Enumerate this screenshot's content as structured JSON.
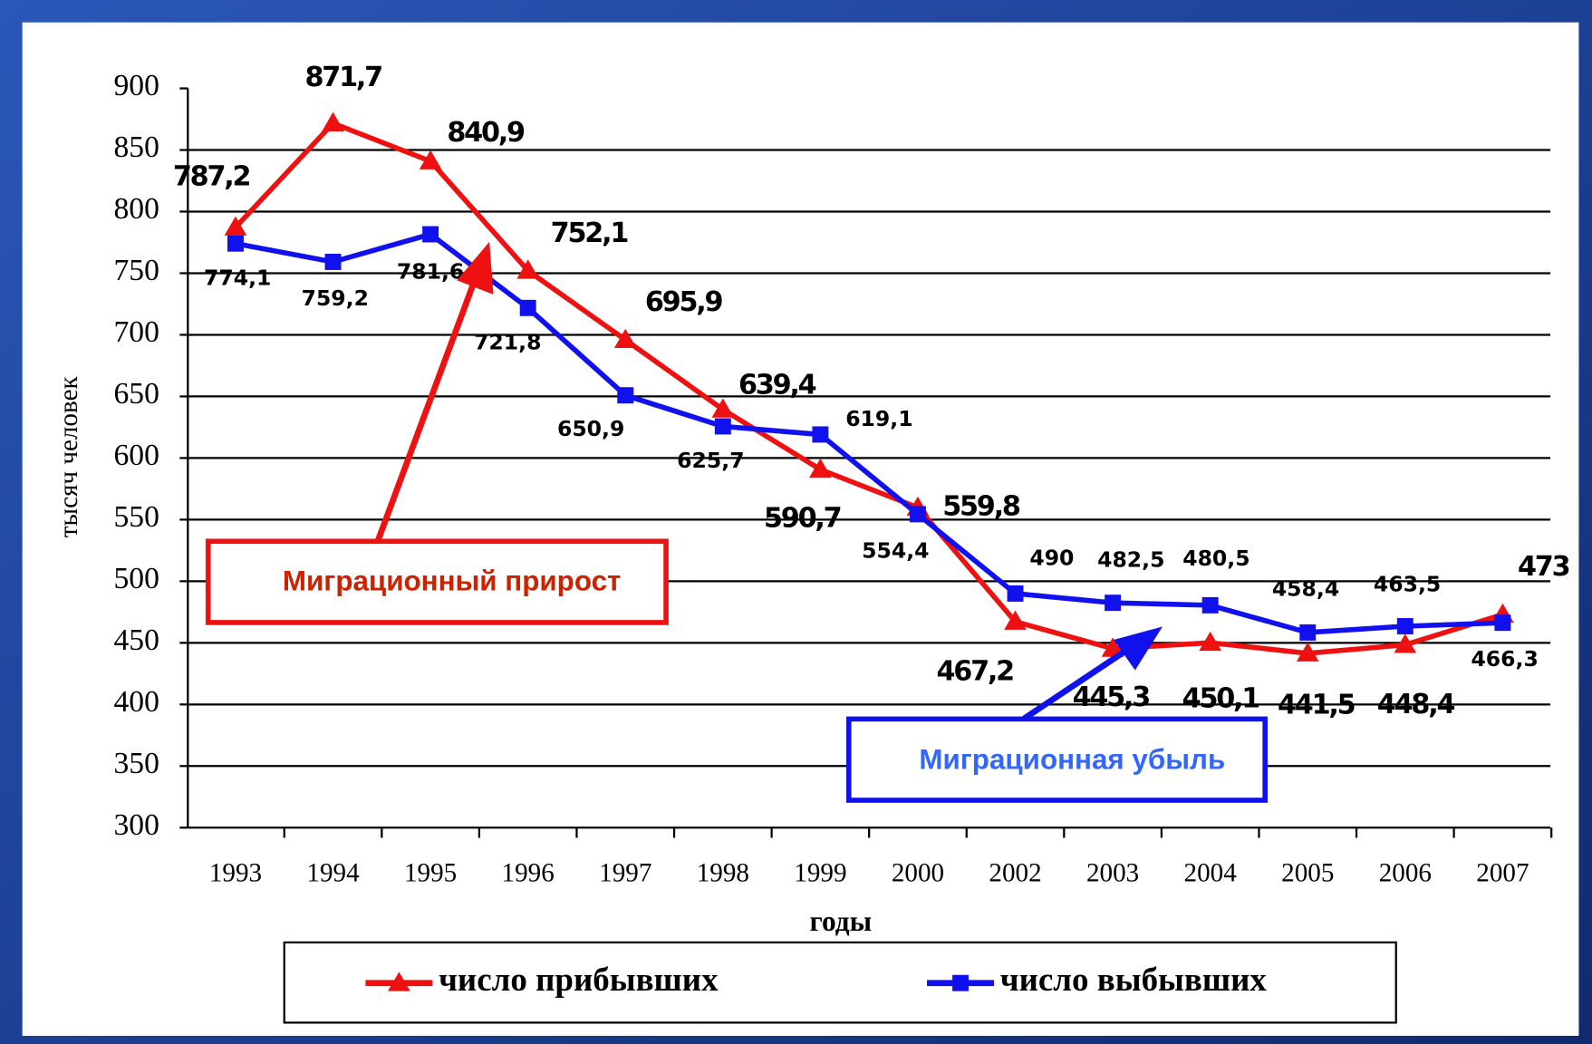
{
  "chart_data": {
    "type": "line",
    "y_label": "тысяч человек",
    "x_label": "годы",
    "categories": [
      "1993",
      "1994",
      "1995",
      "1996",
      "1997",
      "1998",
      "1999",
      "2000",
      "2002",
      "2003",
      "2004",
      "2005",
      "2006",
      "2007"
    ],
    "series": [
      {
        "name": "число прибывших",
        "color": "#ee1111",
        "marker": "triangle",
        "values": [
          787.2,
          871.7,
          840.9,
          752.1,
          695.9,
          639.4,
          590.7,
          559.8,
          467.2,
          445.3,
          450.1,
          441.5,
          448.4,
          473
        ],
        "value_labels": [
          "787,2",
          "871,7",
          "840,9",
          "752,1",
          "695,9",
          "639,4",
          "590,7",
          "559,8",
          "467,2",
          "445,3",
          "450,1",
          "441,5",
          "448,4",
          "473"
        ]
      },
      {
        "name": "число выбывших",
        "color": "#1111ee",
        "marker": "square",
        "values": [
          774.1,
          759.2,
          781.6,
          721.8,
          650.9,
          625.7,
          619.1,
          554.4,
          490,
          482.5,
          480.5,
          458.4,
          463.5,
          466.3
        ],
        "value_labels": [
          "774,1",
          "759,2",
          "781,6",
          "721,8",
          "650,9",
          "625,7",
          "619,1",
          "554,4",
          "490",
          "482,5",
          "480,5",
          "458,4",
          "463,5",
          "466,3"
        ]
      }
    ],
    "ylim": [
      300,
      900
    ],
    "yticks": [
      300,
      350,
      400,
      450,
      500,
      550,
      600,
      650,
      700,
      750,
      800,
      850,
      900
    ],
    "grid": true,
    "annotations": [
      "Миграционный прирост",
      "Миграционная убыль"
    ]
  }
}
